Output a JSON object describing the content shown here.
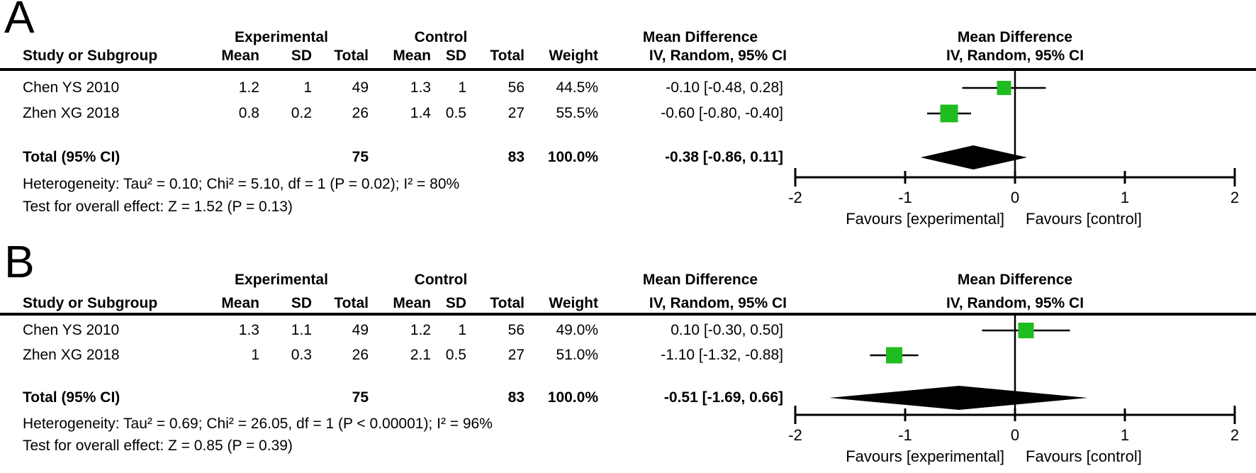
{
  "colors": {
    "square": "#1fbc1f",
    "diamond": "#000000",
    "line": "#000000",
    "background": "#ffffff"
  },
  "panels": [
    {
      "label": "A",
      "headers": {
        "experimental": "Experimental",
        "control": "Control",
        "mean_difference_left": "Mean Difference",
        "mean_difference_right": "Mean Difference",
        "study": "Study or Subgroup",
        "mean1": "Mean",
        "sd1": "SD",
        "total1": "Total",
        "mean2": "Mean",
        "sd2": "SD",
        "total2": "Total",
        "weight": "Weight",
        "ci": "IV, Random, 95% CI",
        "ci_right": "IV, Random, 95% CI"
      },
      "rows": [
        {
          "study": "Chen YS 2010",
          "mean1": "1.2",
          "sd1": "1",
          "total1": "49",
          "mean2": "1.3",
          "sd2": "1",
          "total2": "56",
          "weight": "44.5%",
          "ci_text": "-0.10 [-0.48, 0.28]"
        },
        {
          "study": "Zhen XG 2018",
          "mean1": "0.8",
          "sd1": "0.2",
          "total1": "26",
          "mean2": "1.4",
          "sd2": "0.5",
          "total2": "27",
          "weight": "55.5%",
          "ci_text": "-0.60 [-0.80, -0.40]"
        }
      ],
      "total_row": {
        "label": "Total (95% CI)",
        "total1": "75",
        "total2": "83",
        "weight": "100.0%",
        "ci_text": "-0.38 [-0.86, 0.11]"
      },
      "heterogeneity": "Heterogeneity: Tau² = 0.10; Chi² = 5.10, df = 1 (P = 0.02); I² = 80%",
      "overall_effect": "Test for overall effect: Z = 1.52 (P = 0.13)",
      "favours_left": "Favours [experimental]",
      "favours_right": "Favours [control]"
    },
    {
      "label": "B",
      "headers": {
        "experimental": "Experimental",
        "control": "Control",
        "mean_difference_left": "Mean Difference",
        "mean_difference_right": "Mean Difference",
        "study": "Study or Subgroup",
        "mean1": "Mean",
        "sd1": "SD",
        "total1": "Total",
        "mean2": "Mean",
        "sd2": "SD",
        "total2": "Total",
        "weight": "Weight",
        "ci": "IV, Random, 95% CI",
        "ci_right": "IV, Random, 95% CI"
      },
      "rows": [
        {
          "study": "Chen YS 2010",
          "mean1": "1.3",
          "sd1": "1.1",
          "total1": "49",
          "mean2": "1.2",
          "sd2": "1",
          "total2": "56",
          "weight": "49.0%",
          "ci_text": "0.10 [-0.30, 0.50]"
        },
        {
          "study": "Zhen XG 2018",
          "mean1": "1",
          "sd1": "0.3",
          "total1": "26",
          "mean2": "2.1",
          "sd2": "0.5",
          "total2": "27",
          "weight": "51.0%",
          "ci_text": "-1.10 [-1.32, -0.88]"
        }
      ],
      "total_row": {
        "label": "Total (95% CI)",
        "total1": "75",
        "total2": "83",
        "weight": "100.0%",
        "ci_text": "-0.51 [-1.69, 0.66]"
      },
      "heterogeneity": "Heterogeneity: Tau² = 0.69; Chi² = 26.05, df = 1 (P < 0.00001); I² = 96%",
      "overall_effect": "Test for overall effect: Z = 0.85 (P = 0.39)",
      "favours_left": "Favours [experimental]",
      "favours_right": "Favours [control]"
    }
  ],
  "chart_data": [
    {
      "type": "forest",
      "panel": "A",
      "title": "Mean Difference",
      "subtitle": "IV, Random, 95% CI",
      "effect_measure": "Mean Difference, IV, Random, 95% CI",
      "x_range": [
        -2,
        2
      ],
      "x_ticks": [
        -2,
        -1,
        0,
        1,
        2
      ],
      "studies": [
        {
          "name": "Chen YS 2010",
          "md": -0.1,
          "ci_low": -0.48,
          "ci_high": 0.28,
          "weight_pct": 44.5
        },
        {
          "name": "Zhen XG 2018",
          "md": -0.6,
          "ci_low": -0.8,
          "ci_high": -0.4,
          "weight_pct": 55.5
        }
      ],
      "total": {
        "md": -0.38,
        "ci_low": -0.86,
        "ci_high": 0.11
      },
      "xlabel_left": "Favours [experimental]",
      "xlabel_right": "Favours [control]"
    },
    {
      "type": "forest",
      "panel": "B",
      "title": "Mean Difference",
      "subtitle": "IV, Random, 95% CI",
      "effect_measure": "Mean Difference, IV, Random, 95% CI",
      "x_range": [
        -2,
        2
      ],
      "x_ticks": [
        -2,
        -1,
        0,
        1,
        2
      ],
      "studies": [
        {
          "name": "Chen YS 2010",
          "md": 0.1,
          "ci_low": -0.3,
          "ci_high": 0.5,
          "weight_pct": 49.0
        },
        {
          "name": "Zhen XG 2018",
          "md": -1.1,
          "ci_low": -1.32,
          "ci_high": -0.88,
          "weight_pct": 51.0
        }
      ],
      "total": {
        "md": -0.51,
        "ci_low": -1.69,
        "ci_high": 0.66
      },
      "xlabel_left": "Favours [experimental]",
      "xlabel_right": "Favours [control]"
    }
  ]
}
